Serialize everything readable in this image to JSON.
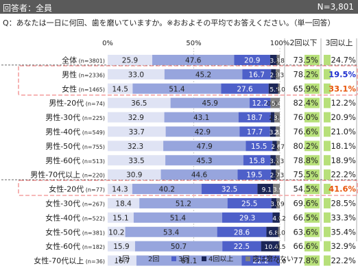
{
  "header": {
    "respondent_label": "回答者：全員",
    "n_label": "N=3,801"
  },
  "question": "Q：あなたは一日に何回、歯を磨いていますか。※おおよその平均でお答えください。（単一回答）",
  "colors": {
    "seg1": "#dfe3f4",
    "seg2": "#97a5dd",
    "seg3": "#4e60c9",
    "seg4": "#1b2657",
    "seg5": "#7f7f7f",
    "le2": "#b7e07a",
    "ge3": "#b7e07a",
    "highlight": "#f4a0a0",
    "emph_blue": "#1f2fd0",
    "emph_orange": "#e8560c"
  },
  "chart_data": {
    "type": "bar",
    "stacked": true,
    "orientation": "horizontal",
    "xlim": [
      0,
      100
    ],
    "x_ticks": [
      "0%",
      "50%",
      "100%"
    ],
    "series_names": [
      "1回",
      "2回",
      "3回",
      "4回以上",
      "歯は磨かない"
    ],
    "col_headers": [
      "2回以下",
      "3回以上"
    ],
    "rows": [
      {
        "label": "全体",
        "n": "(n=3801)",
        "values": [
          25.9,
          47.6,
          20.9,
          3.8,
          1.8
        ],
        "le2": "73.5%",
        "ge3": "24.7%"
      },
      {
        "label": "男性",
        "n": "(n=2336)",
        "values": [
          33.0,
          45.2,
          16.7,
          2.8,
          2.3
        ],
        "le2": "78.2%",
        "ge3": "19.5%"
      },
      {
        "label": "女性",
        "n": "(n=1465)",
        "values": [
          14.5,
          51.4,
          27.6,
          5.5,
          1.0
        ],
        "le2": "65.9%",
        "ge3": "33.1%"
      },
      {
        "label": "男性-20代",
        "n": "(n=74)",
        "values": [
          36.5,
          45.9,
          12.2,
          0.0,
          5.4
        ],
        "le2": "82.4%",
        "ge3": "12.2%"
      },
      {
        "label": "男性-30代",
        "n": "(n=225)",
        "values": [
          32.9,
          43.1,
          18.7,
          2.2,
          3.1
        ],
        "le2": "76.0%",
        "ge3": "20.9%"
      },
      {
        "label": "男性-40代",
        "n": "(n=549)",
        "values": [
          33.7,
          42.9,
          17.7,
          3.3,
          2.4
        ],
        "le2": "76.6%",
        "ge3": "21.0%"
      },
      {
        "label": "男性-50代",
        "n": "(n=755)",
        "values": [
          32.3,
          47.9,
          15.5,
          2.6,
          1.7
        ],
        "le2": "80.2%",
        "ge3": "18.1%"
      },
      {
        "label": "男性-60代",
        "n": "(n=513)",
        "values": [
          33.5,
          45.3,
          15.8,
          3.1,
          2.3
        ],
        "le2": "78.8%",
        "ge3": "18.9%"
      },
      {
        "label": "男性-70代以上",
        "n": "(n=220)",
        "values": [
          30.9,
          44.6,
          19.5,
          2.7,
          2.3
        ],
        "le2": "75.5%",
        "ge3": "22.2%"
      },
      {
        "label": "女性-20代",
        "n": "(n=77)",
        "values": [
          14.3,
          40.2,
          32.5,
          9.1,
          3.9
        ],
        "le2": "54.5%",
        "ge3": "41.6%"
      },
      {
        "label": "女性-30代",
        "n": "(n=267)",
        "values": [
          18.4,
          51.2,
          25.5,
          3.0,
          1.9
        ],
        "le2": "69.6%",
        "ge3": "28.5%"
      },
      {
        "label": "女性-40代",
        "n": "(n=522)",
        "values": [
          15.1,
          51.4,
          29.3,
          4.0,
          0.2
        ],
        "le2": "66.5%",
        "ge3": "33.3%"
      },
      {
        "label": "女性-50代",
        "n": "(n=381)",
        "values": [
          10.2,
          53.4,
          28.6,
          6.8,
          1.0
        ],
        "le2": "63.6%",
        "ge3": "35.4%"
      },
      {
        "label": "女性-60代",
        "n": "(n=182)",
        "values": [
          15.9,
          50.7,
          22.5,
          10.4,
          0.5
        ],
        "le2": "66.6%",
        "ge3": "32.9%"
      },
      {
        "label": "女性-70代以上",
        "n": "(n=36)",
        "values": [
          16.7,
          61.1,
          22.2,
          0.0,
          0.0
        ],
        "le2": "77.8%",
        "ge3": "22.2%"
      }
    ],
    "highlighted_rows": [
      1,
      2,
      9
    ],
    "emphasis": {
      "1": "blue",
      "2": "orange",
      "9": "orange"
    }
  }
}
